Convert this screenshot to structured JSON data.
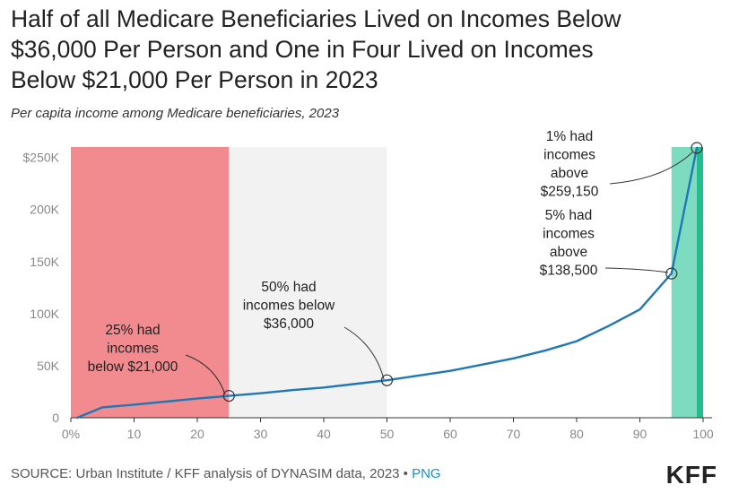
{
  "header": {
    "title_lines": [
      "Half of all Medicare Beneficiaries Lived on Incomes Below",
      "$36,000 Per Person and One in Four Lived on Incomes",
      "Below $21,000 Per Person in 2023"
    ],
    "subtitle": "Per capita income among Medicare beneficiaries, 2023"
  },
  "footer": {
    "source": "SOURCE: Urban Institute / KFF analysis of DYNASIM data, 2023 • ",
    "link_label": "PNG",
    "logo": "KFF"
  },
  "colors": {
    "line": "#1f78b4",
    "band_low": "#f28b8f",
    "band_mid": "#f2f2f2",
    "band_high": "#7ddcc0",
    "band_top": "#1fc08c"
  },
  "chart_data": {
    "type": "line",
    "title": "Half of all Medicare Beneficiaries Lived on Incomes Below $36,000 Per Person and One in Four Lived on Incomes Below $21,000 Per Person in 2023",
    "subtitle": "Per capita income among Medicare beneficiaries, 2023",
    "xlabel": "",
    "ylabel": "",
    "xlim": [
      0,
      100
    ],
    "ylim": [
      0,
      260000
    ],
    "x_ticks": [
      0,
      10,
      20,
      30,
      40,
      50,
      60,
      70,
      80,
      90,
      100
    ],
    "x_tick_labels": [
      "0%",
      "10",
      "20",
      "30",
      "40",
      "50",
      "60",
      "70",
      "80",
      "90",
      "100"
    ],
    "y_ticks": [
      0,
      50000,
      100000,
      150000,
      200000,
      250000
    ],
    "y_tick_labels": [
      "0",
      "50K",
      "100K",
      "150K",
      "200K",
      "$250K"
    ],
    "grid": false,
    "series": [
      {
        "x": [
          1,
          5,
          10,
          15,
          20,
          25,
          30,
          35,
          40,
          45,
          50,
          55,
          60,
          65,
          70,
          75,
          80,
          85,
          90,
          95,
          99
        ],
        "y": [
          0,
          10000,
          12500,
          15500,
          18500,
          21000,
          23500,
          26500,
          29000,
          32500,
          36000,
          40500,
          45000,
          51000,
          57000,
          64500,
          73500,
          88000,
          104000,
          138500,
          259150
        ]
      }
    ],
    "bands": [
      {
        "x_from": 0,
        "x_to": 25,
        "color": "#f28b8f"
      },
      {
        "x_from": 25,
        "x_to": 50,
        "color": "#f2f2f2"
      },
      {
        "x_from": 95,
        "x_to": 99,
        "color": "#7ddcc0"
      },
      {
        "x_from": 99,
        "x_to": 100,
        "color": "#1fc08c"
      }
    ],
    "highlights": [
      {
        "x": 25,
        "y": 21000,
        "label_lines": [
          "25% had",
          "incomes",
          "below $21,000"
        ]
      },
      {
        "x": 50,
        "y": 36000,
        "label_lines": [
          "50% had",
          "incomes below",
          "$36,000"
        ]
      },
      {
        "x": 95,
        "y": 138500,
        "label_lines": [
          "5% had",
          "incomes",
          "above",
          "$138,500"
        ]
      },
      {
        "x": 99,
        "y": 259150,
        "label_lines": [
          "1% had",
          "incomes",
          "above",
          "$259,150"
        ]
      }
    ]
  }
}
